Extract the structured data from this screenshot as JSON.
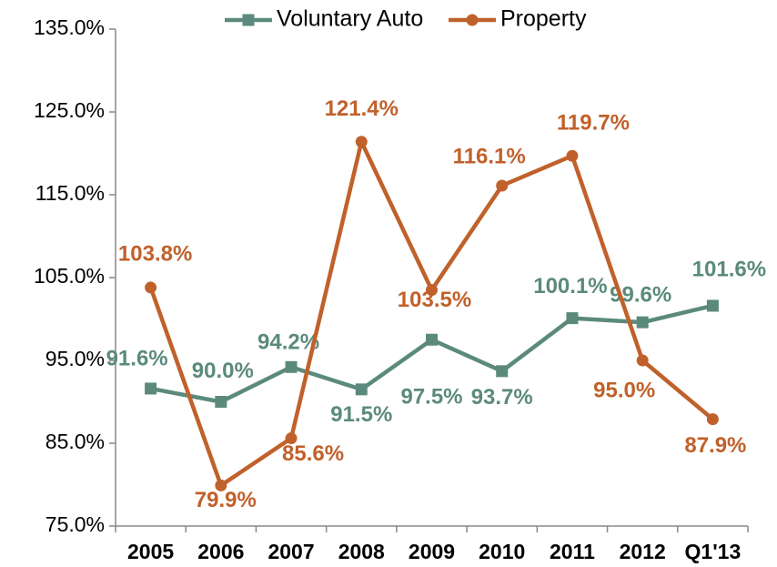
{
  "chart_data": {
    "type": "line",
    "categories": [
      "2005",
      "2006",
      "2007",
      "2008",
      "2009",
      "2010",
      "2011",
      "2012",
      "Q1'13"
    ],
    "series": [
      {
        "name": "Voluntary Auto",
        "color": "#5b8a7c",
        "marker": "square",
        "values": [
          91.6,
          90.0,
          94.2,
          91.5,
          97.5,
          93.7,
          100.1,
          99.6,
          101.6
        ],
        "value_labels": [
          "91.6%",
          "90.0%",
          "94.2%",
          "91.5%",
          "97.5%",
          "93.7%",
          "100.1%",
          "99.6%",
          "101.6%"
        ]
      },
      {
        "name": "Property",
        "color": "#c0612b",
        "marker": "circle",
        "values": [
          103.8,
          79.9,
          85.6,
          121.4,
          103.5,
          116.1,
          119.7,
          95.0,
          87.9
        ],
        "value_labels": [
          "103.8%",
          "79.9%",
          "85.6%",
          "121.4%",
          "103.5%",
          "116.1%",
          "119.7%",
          "95.0%",
          "87.9%"
        ]
      }
    ],
    "ylim": [
      75,
      135
    ],
    "yticks": [
      {
        "value": 75,
        "label": "75.0%"
      },
      {
        "value": 85,
        "label": "85.0%"
      },
      {
        "value": 95,
        "label": "95.0%"
      },
      {
        "value": 105,
        "label": "105.0%"
      },
      {
        "value": 115,
        "label": "115.0%"
      },
      {
        "value": 125,
        "label": "125.0%"
      },
      {
        "value": 135,
        "label": "135.0%"
      }
    ],
    "grid": false,
    "legend": "top"
  }
}
